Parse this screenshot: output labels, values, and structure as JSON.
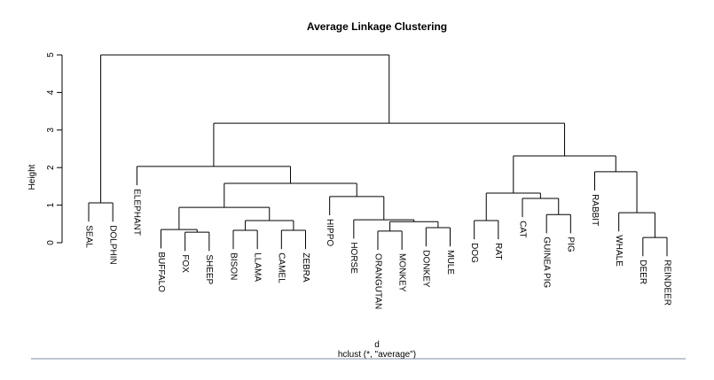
{
  "chart_data": {
    "type": "dendrogram",
    "title": "Average Linkage Clustering",
    "xlabel": "d",
    "subtitle": "hclust (*, \"average\")",
    "ylabel": "Height",
    "ylim": [
      0,
      5
    ],
    "yticks": [
      0,
      1,
      2,
      3,
      4,
      5
    ],
    "color": "#000000",
    "tree": {
      "height": 5.0,
      "children": [
        {
          "height": 1.06,
          "children": [
            {
              "label": "SEAL"
            },
            {
              "label": "DOLPHIN"
            }
          ]
        },
        {
          "height": 3.18,
          "children": [
            {
              "height": 2.03,
              "children": [
                {
                  "label": "ELEPHANT"
                },
                {
                  "height": 1.58,
                  "children": [
                    {
                      "height": 0.94,
                      "children": [
                        {
                          "height": 0.35,
                          "children": [
                            {
                              "label": "BUFFALO"
                            },
                            {
                              "height": 0.28,
                              "children": [
                                {
                                  "label": "FOX"
                                },
                                {
                                  "label": "SHEEP"
                                }
                              ]
                            }
                          ]
                        },
                        {
                          "height": 0.59,
                          "children": [
                            {
                              "height": 0.33,
                              "children": [
                                {
                                  "label": "BISON"
                                },
                                {
                                  "label": "LLAMA"
                                }
                              ]
                            },
                            {
                              "height": 0.33,
                              "children": [
                                {
                                  "label": "CAMEL"
                                },
                                {
                                  "label": "ZEBRA"
                                }
                              ]
                            }
                          ]
                        }
                      ]
                    },
                    {
                      "height": 1.23,
                      "children": [
                        {
                          "label": "HIPPO"
                        },
                        {
                          "height": 0.61,
                          "children": [
                            {
                              "label": "HORSE"
                            },
                            {
                              "height": 0.56,
                              "children": [
                                {
                                  "height": 0.31,
                                  "children": [
                                    {
                                      "label": "ORANGUTAN"
                                    },
                                    {
                                      "label": "MONKEY"
                                    }
                                  ]
                                },
                                {
                                  "height": 0.4,
                                  "children": [
                                    {
                                      "label": "DONKEY"
                                    },
                                    {
                                      "label": "MULE"
                                    }
                                  ]
                                }
                              ]
                            }
                          ]
                        }
                      ]
                    }
                  ]
                }
              ]
            },
            {
              "height": 2.31,
              "children": [
                {
                  "height": 1.32,
                  "children": [
                    {
                      "height": 0.59,
                      "children": [
                        {
                          "label": "DOG"
                        },
                        {
                          "label": "RAT"
                        }
                      ]
                    },
                    {
                      "height": 1.18,
                      "children": [
                        {
                          "label": "CAT"
                        },
                        {
                          "height": 0.75,
                          "children": [
                            {
                              "label": "GUINEA PIG"
                            },
                            {
                              "label": "PIG"
                            }
                          ]
                        }
                      ]
                    }
                  ]
                },
                {
                  "height": 1.89,
                  "children": [
                    {
                      "label": "RABBIT"
                    },
                    {
                      "height": 0.8,
                      "children": [
                        {
                          "label": "WHALE"
                        },
                        {
                          "height": 0.14,
                          "children": [
                            {
                              "label": "DEER"
                            },
                            {
                              "label": "REINDEER"
                            }
                          ]
                        }
                      ]
                    }
                  ]
                }
              ]
            }
          ]
        }
      ]
    }
  }
}
